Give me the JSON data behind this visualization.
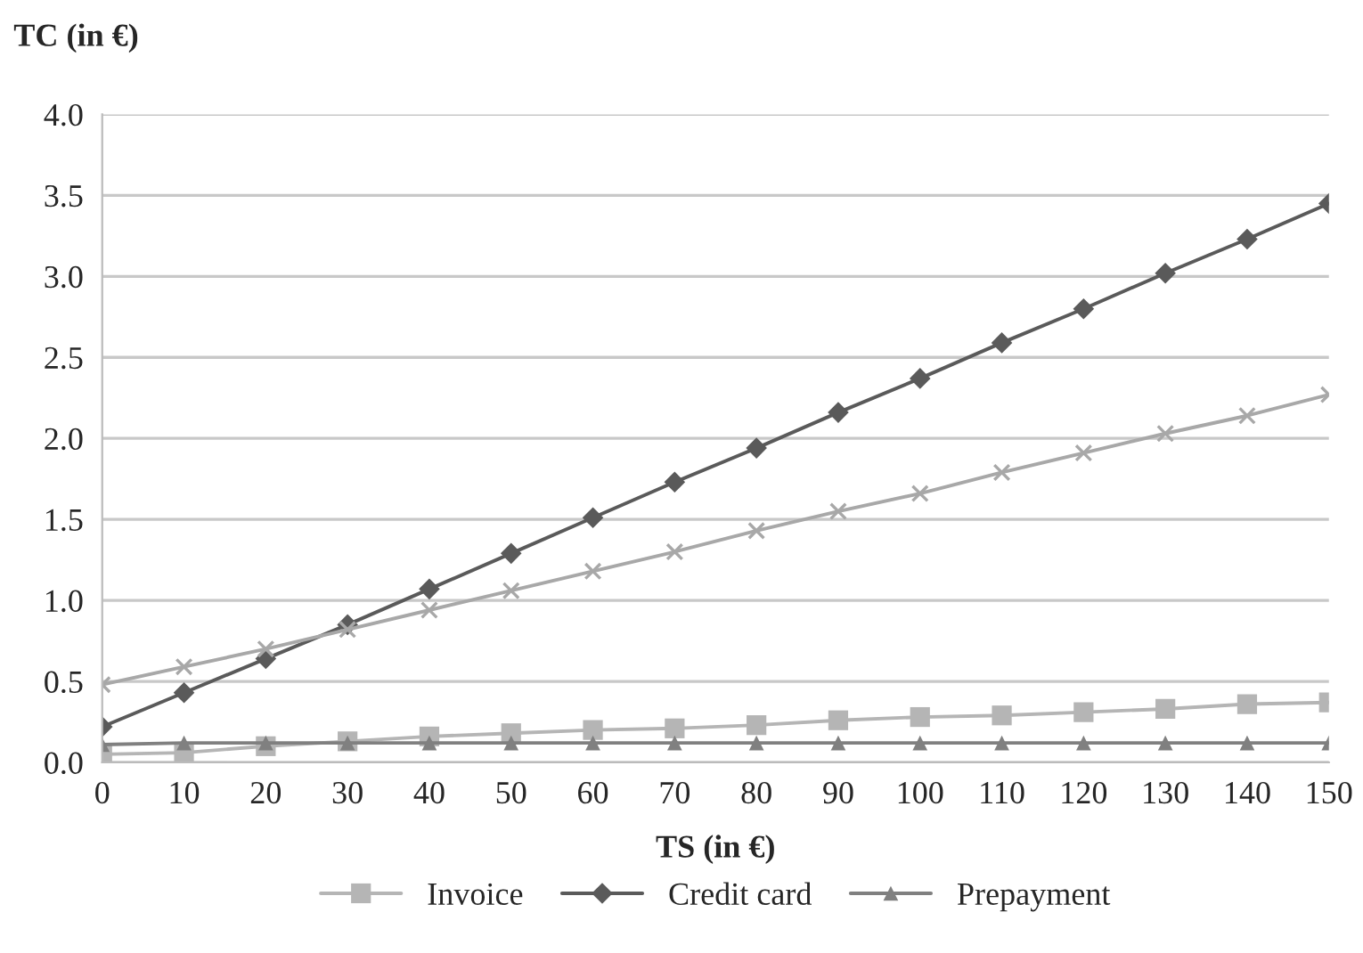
{
  "chart_data": {
    "type": "line",
    "xlabel": "TS (in €)",
    "ylabel": "TC (in €)",
    "x": [
      0,
      10,
      20,
      30,
      40,
      50,
      60,
      70,
      80,
      90,
      100,
      110,
      120,
      130,
      140,
      150
    ],
    "series": [
      {
        "name": "Invoice",
        "color": "#b5b5b5",
        "marker": "square",
        "values": [
          0.05,
          0.06,
          0.1,
          0.13,
          0.16,
          0.18,
          0.2,
          0.21,
          0.23,
          0.26,
          0.28,
          0.29,
          0.31,
          0.33,
          0.36,
          0.37
        ]
      },
      {
        "name": "Credit card",
        "color": "#5a5a5a",
        "marker": "diamond",
        "values": [
          0.22,
          0.43,
          0.64,
          0.85,
          1.07,
          1.29,
          1.51,
          1.73,
          1.94,
          2.16,
          2.37,
          2.59,
          2.8,
          3.02,
          3.23,
          3.45
        ]
      },
      {
        "color": "#a8a8a8",
        "marker": "cross",
        "values": [
          0.48,
          0.59,
          0.7,
          0.82,
          0.94,
          1.06,
          1.18,
          1.3,
          1.43,
          1.55,
          1.66,
          1.79,
          1.91,
          2.03,
          2.14,
          2.27
        ]
      },
      {
        "name": "Prepayment",
        "color": "#808080",
        "marker": "triangle",
        "values": [
          0.11,
          0.12,
          0.12,
          0.12,
          0.12,
          0.12,
          0.12,
          0.12,
          0.12,
          0.12,
          0.12,
          0.12,
          0.12,
          0.12,
          0.12,
          0.12
        ]
      }
    ],
    "xlim": [
      0,
      150
    ],
    "xticks": [
      0,
      10,
      20,
      30,
      40,
      50,
      60,
      70,
      80,
      90,
      100,
      110,
      120,
      130,
      140,
      150
    ],
    "ylim": [
      0,
      4
    ],
    "yticks": [
      {
        "value": 0,
        "label": "0.0"
      },
      {
        "value": 0.5,
        "label": "0.5"
      },
      {
        "value": 1,
        "label": "1.0"
      },
      {
        "value": 1.5,
        "label": "1.5"
      },
      {
        "value": 2,
        "label": "2.0"
      },
      {
        "value": 2.5,
        "label": "2.5"
      },
      {
        "value": 3,
        "label": "3.0"
      },
      {
        "value": 3.5,
        "label": "3.5"
      },
      {
        "value": 4,
        "label": "4.0"
      }
    ],
    "grid": "y",
    "legend": "bottom",
    "line_style": "solid"
  }
}
